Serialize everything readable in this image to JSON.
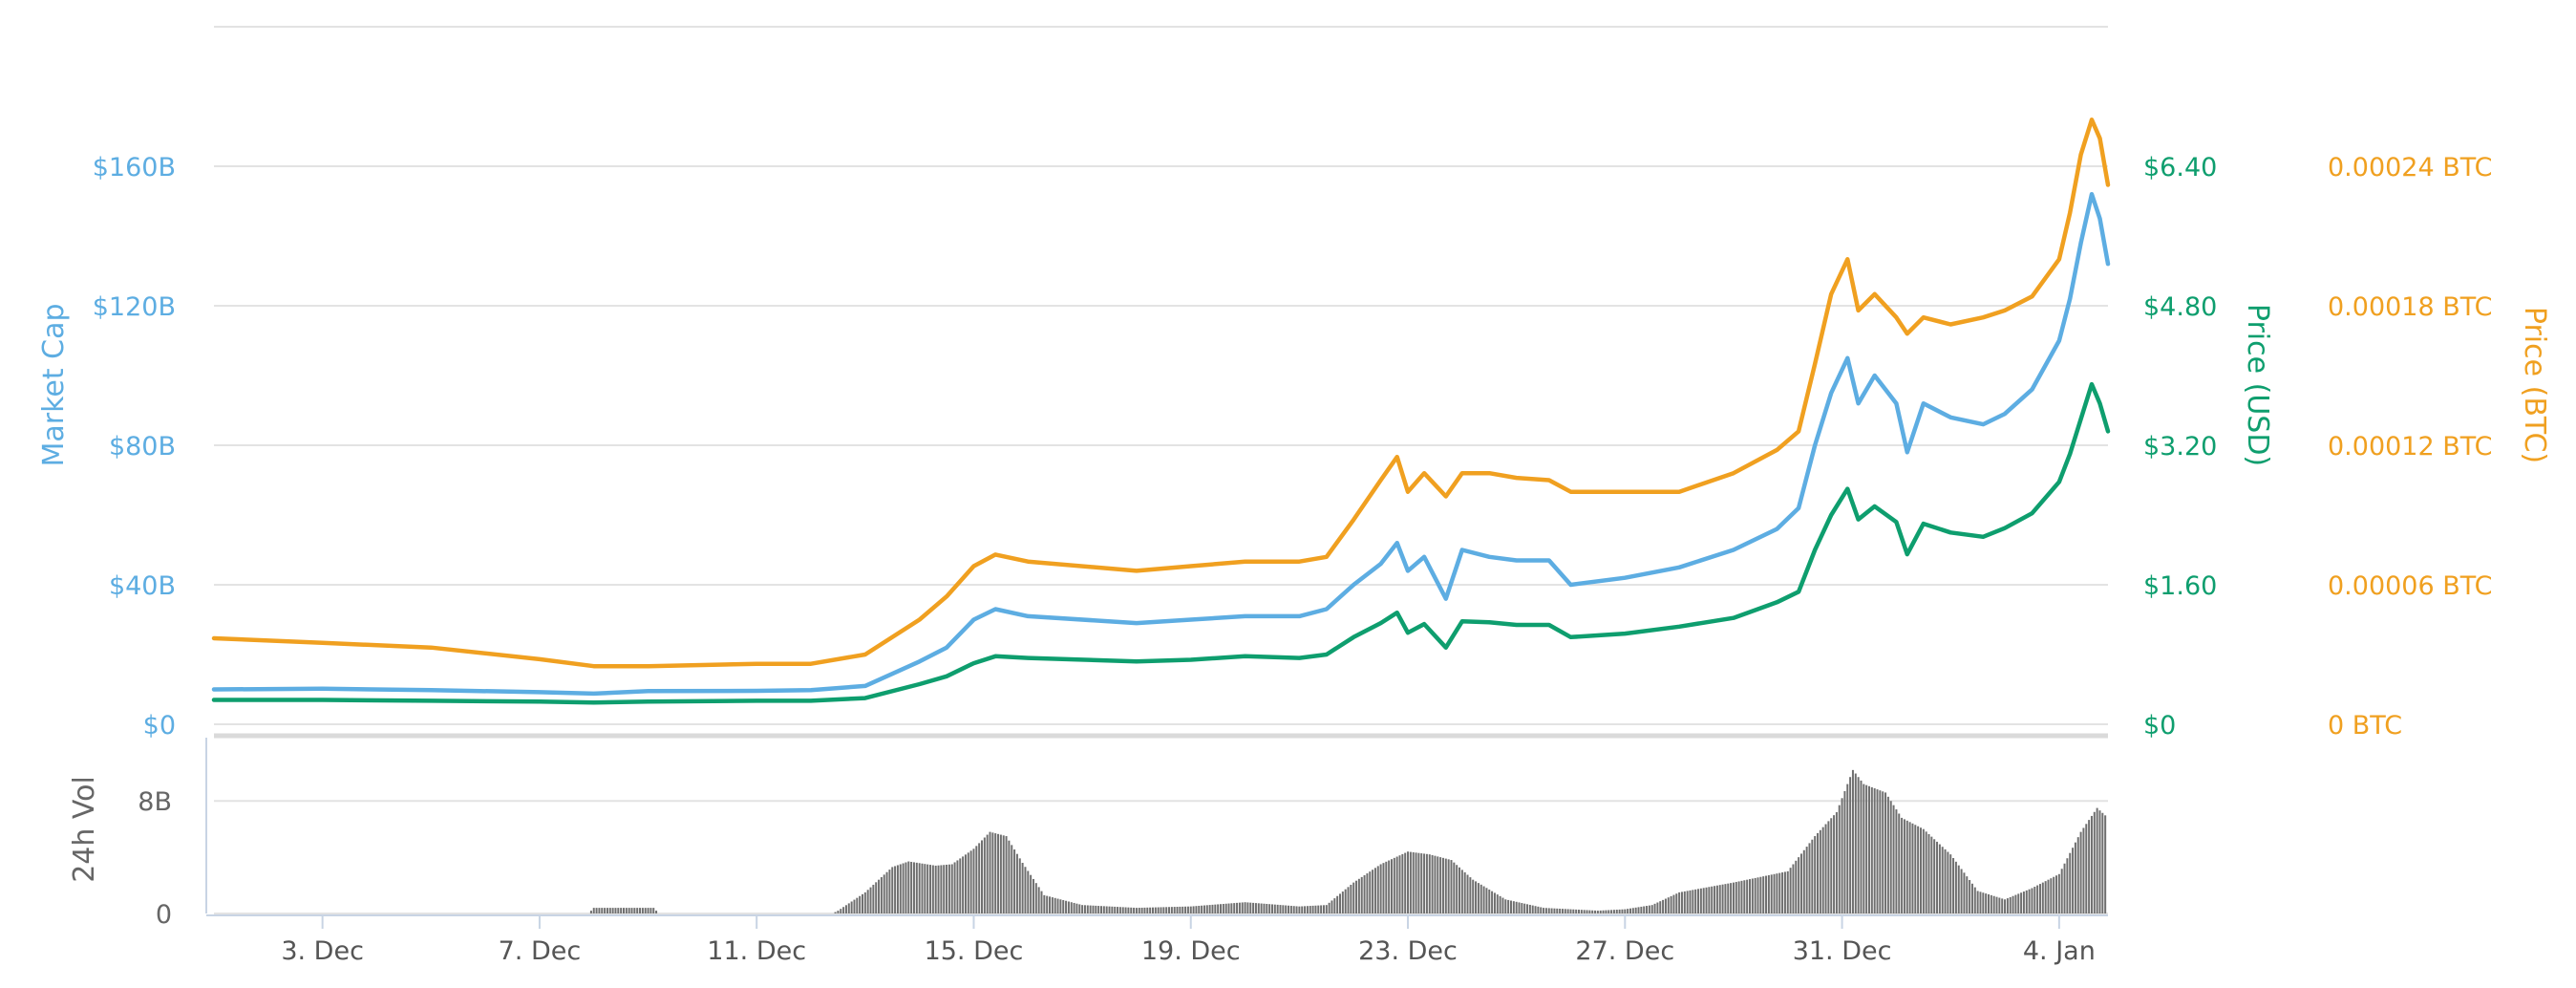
{
  "chart_data": {
    "type": "line",
    "x": {
      "tick_labels": [
        "3. Dec",
        "7. Dec",
        "11. Dec",
        "15. Dec",
        "19. Dec",
        "23. Dec",
        "27. Dec",
        "31. Dec",
        "4. Jan"
      ],
      "tick_days": [
        2,
        6,
        10,
        14,
        18,
        22,
        26,
        30,
        34
      ],
      "range_days": [
        0,
        34.9
      ]
    },
    "axes": {
      "market_cap": {
        "title": "Market Cap",
        "color": "#5DADE2",
        "range": [
          0,
          200
        ],
        "ticks": [
          {
            "v": 0,
            "label": "$0"
          },
          {
            "v": 40,
            "label": "$40B"
          },
          {
            "v": 80,
            "label": "$80B"
          },
          {
            "v": 120,
            "label": "$120B"
          },
          {
            "v": 160,
            "label": "$160B"
          }
        ]
      },
      "price_usd": {
        "title": "Price (USD)",
        "color": "#0E9E6E",
        "range": [
          0,
          8
        ],
        "ticks": [
          {
            "v": 0,
            "label": "$0"
          },
          {
            "v": 1.6,
            "label": "$1.60"
          },
          {
            "v": 3.2,
            "label": "$3.20"
          },
          {
            "v": 4.8,
            "label": "$4.80"
          },
          {
            "v": 6.4,
            "label": "$6.40"
          }
        ]
      },
      "price_btc": {
        "title": "Price (BTC)",
        "color": "#F0A020",
        "range": [
          0,
          0.0003
        ],
        "ticks": [
          {
            "v": 0,
            "label": "0 BTC"
          },
          {
            "v": 6e-05,
            "label": "0.00006 BTC"
          },
          {
            "v": 0.00012,
            "label": "0.00012 BTC"
          },
          {
            "v": 0.00018,
            "label": "0.00018 BTC"
          },
          {
            "v": 0.00024,
            "label": "0.00024 BTC"
          }
        ]
      },
      "volume": {
        "title": "24h Vol",
        "color": "#666666",
        "range": [
          0,
          12.5
        ],
        "ticks": [
          {
            "v": 0,
            "label": "0"
          },
          {
            "v": 8,
            "label": "8B"
          }
        ]
      }
    },
    "grid": true,
    "series": [
      {
        "axis": "market_cap",
        "points": [
          [
            0,
            10
          ],
          [
            2,
            10.2
          ],
          [
            4,
            9.8
          ],
          [
            6,
            9.2
          ],
          [
            7,
            8.8
          ],
          [
            8,
            9.5
          ],
          [
            10,
            9.6
          ],
          [
            11,
            9.8
          ],
          [
            12,
            11
          ],
          [
            13,
            18
          ],
          [
            13.5,
            22
          ],
          [
            14,
            30
          ],
          [
            14.4,
            33
          ],
          [
            15,
            31
          ],
          [
            17,
            29
          ],
          [
            18,
            30
          ],
          [
            19,
            31
          ],
          [
            20,
            31
          ],
          [
            20.5,
            33
          ],
          [
            21,
            40
          ],
          [
            21.5,
            46
          ],
          [
            21.8,
            52
          ],
          [
            22,
            44
          ],
          [
            22.3,
            48
          ],
          [
            22.7,
            36
          ],
          [
            23,
            50
          ],
          [
            23.5,
            48
          ],
          [
            24,
            47
          ],
          [
            24.6,
            47
          ],
          [
            25,
            40
          ],
          [
            26,
            42
          ],
          [
            27,
            45
          ],
          [
            28,
            50
          ],
          [
            28.8,
            56
          ],
          [
            29.2,
            62
          ],
          [
            29.5,
            80
          ],
          [
            29.8,
            95
          ],
          [
            30.1,
            105
          ],
          [
            30.3,
            92
          ],
          [
            30.6,
            100
          ],
          [
            31,
            92
          ],
          [
            31.2,
            78
          ],
          [
            31.5,
            92
          ],
          [
            32,
            88
          ],
          [
            32.6,
            86
          ],
          [
            33,
            89
          ],
          [
            33.5,
            96
          ],
          [
            34,
            110
          ],
          [
            34.2,
            122
          ],
          [
            34.4,
            138
          ],
          [
            34.6,
            152
          ],
          [
            34.75,
            145
          ],
          [
            34.9,
            132
          ]
        ]
      },
      {
        "axis": "price_usd",
        "points": [
          [
            0,
            0.28
          ],
          [
            2,
            0.28
          ],
          [
            4,
            0.27
          ],
          [
            6,
            0.26
          ],
          [
            7,
            0.25
          ],
          [
            8,
            0.26
          ],
          [
            10,
            0.27
          ],
          [
            11,
            0.27
          ],
          [
            12,
            0.3
          ],
          [
            13,
            0.46
          ],
          [
            13.5,
            0.55
          ],
          [
            14,
            0.7
          ],
          [
            14.4,
            0.78
          ],
          [
            15,
            0.76
          ],
          [
            17,
            0.72
          ],
          [
            18,
            0.74
          ],
          [
            19,
            0.78
          ],
          [
            20,
            0.76
          ],
          [
            20.5,
            0.8
          ],
          [
            21,
            1
          ],
          [
            21.5,
            1.16
          ],
          [
            21.8,
            1.28
          ],
          [
            22,
            1.05
          ],
          [
            22.3,
            1.15
          ],
          [
            22.7,
            0.88
          ],
          [
            23,
            1.18
          ],
          [
            23.5,
            1.17
          ],
          [
            24,
            1.14
          ],
          [
            24.6,
            1.14
          ],
          [
            25,
            1
          ],
          [
            26,
            1.04
          ],
          [
            27,
            1.12
          ],
          [
            28,
            1.22
          ],
          [
            28.8,
            1.4
          ],
          [
            29.2,
            1.52
          ],
          [
            29.5,
            2
          ],
          [
            29.8,
            2.4
          ],
          [
            30.1,
            2.7
          ],
          [
            30.3,
            2.35
          ],
          [
            30.6,
            2.5
          ],
          [
            31,
            2.32
          ],
          [
            31.2,
            1.95
          ],
          [
            31.5,
            2.3
          ],
          [
            32,
            2.2
          ],
          [
            32.6,
            2.15
          ],
          [
            33,
            2.25
          ],
          [
            33.5,
            2.42
          ],
          [
            34,
            2.78
          ],
          [
            34.2,
            3.1
          ],
          [
            34.4,
            3.5
          ],
          [
            34.6,
            3.9
          ],
          [
            34.75,
            3.68
          ],
          [
            34.9,
            3.36
          ]
        ]
      },
      {
        "axis": "price_btc",
        "points": [
          [
            0,
            3.7e-05
          ],
          [
            2,
            3.5e-05
          ],
          [
            4,
            3.3e-05
          ],
          [
            6,
            2.8e-05
          ],
          [
            7,
            2.5e-05
          ],
          [
            8,
            2.5e-05
          ],
          [
            10,
            2.6e-05
          ],
          [
            11,
            2.6e-05
          ],
          [
            12,
            3e-05
          ],
          [
            13,
            4.5e-05
          ],
          [
            13.5,
            5.5e-05
          ],
          [
            14,
            6.8e-05
          ],
          [
            14.4,
            7.3e-05
          ],
          [
            15,
            7e-05
          ],
          [
            17,
            6.6e-05
          ],
          [
            18,
            6.8e-05
          ],
          [
            19,
            7e-05
          ],
          [
            20,
            7e-05
          ],
          [
            20.5,
            7.2e-05
          ],
          [
            21,
            8.8e-05
          ],
          [
            21.5,
            0.000105
          ],
          [
            21.8,
            0.000115
          ],
          [
            22,
            0.0001
          ],
          [
            22.3,
            0.000108
          ],
          [
            22.7,
            9.8e-05
          ],
          [
            23,
            0.000108
          ],
          [
            23.5,
            0.000108
          ],
          [
            24,
            0.000106
          ],
          [
            24.6,
            0.000105
          ],
          [
            25,
            0.0001
          ],
          [
            26,
            0.0001
          ],
          [
            27,
            0.0001
          ],
          [
            28,
            0.000108
          ],
          [
            28.8,
            0.000118
          ],
          [
            29.2,
            0.000126
          ],
          [
            29.5,
            0.000155
          ],
          [
            29.8,
            0.000185
          ],
          [
            30.1,
            0.0002
          ],
          [
            30.3,
            0.000178
          ],
          [
            30.6,
            0.000185
          ],
          [
            31,
            0.000175
          ],
          [
            31.2,
            0.000168
          ],
          [
            31.5,
            0.000175
          ],
          [
            32,
            0.000172
          ],
          [
            32.6,
            0.000175
          ],
          [
            33,
            0.000178
          ],
          [
            33.5,
            0.000184
          ],
          [
            34,
            0.0002
          ],
          [
            34.2,
            0.00022
          ],
          [
            34.4,
            0.000245
          ],
          [
            34.6,
            0.00026
          ],
          [
            34.75,
            0.000252
          ],
          [
            34.9,
            0.000232
          ]
        ]
      },
      {
        "axis": "volume",
        "type": "bar",
        "points": [
          [
            0,
            0
          ],
          [
            6.9,
            0
          ],
          [
            7,
            0.4
          ],
          [
            8.1,
            0.4
          ],
          [
            8.2,
            0
          ],
          [
            11.4,
            0
          ],
          [
            11.5,
            0.2
          ],
          [
            12,
            1.5
          ],
          [
            12.5,
            3.3
          ],
          [
            12.8,
            3.7
          ],
          [
            13.3,
            3.4
          ],
          [
            13.6,
            3.5
          ],
          [
            14,
            4.6
          ],
          [
            14.3,
            5.8
          ],
          [
            14.6,
            5.5
          ],
          [
            14.9,
            3.6
          ],
          [
            15.3,
            1.3
          ],
          [
            16,
            0.6
          ],
          [
            17,
            0.4
          ],
          [
            18,
            0.5
          ],
          [
            19,
            0.8
          ],
          [
            20,
            0.5
          ],
          [
            20.5,
            0.6
          ],
          [
            21,
            2.2
          ],
          [
            21.5,
            3.5
          ],
          [
            22,
            4.4
          ],
          [
            22.4,
            4.2
          ],
          [
            22.8,
            3.8
          ],
          [
            23.2,
            2.4
          ],
          [
            23.8,
            1
          ],
          [
            24.5,
            0.4
          ],
          [
            25,
            0.3
          ],
          [
            25.5,
            0.2
          ],
          [
            26,
            0.3
          ],
          [
            26.5,
            0.6
          ],
          [
            27,
            1.5
          ],
          [
            28,
            2.2
          ],
          [
            28.5,
            2.6
          ],
          [
            29,
            3
          ],
          [
            29.5,
            5.5
          ],
          [
            29.9,
            7.2
          ],
          [
            30.2,
            10.2
          ],
          [
            30.4,
            9.2
          ],
          [
            30.8,
            8.6
          ],
          [
            31.1,
            6.8
          ],
          [
            31.5,
            6
          ],
          [
            32,
            4.2
          ],
          [
            32.5,
            1.6
          ],
          [
            33,
            1
          ],
          [
            33.5,
            1.8
          ],
          [
            34,
            2.8
          ],
          [
            34.4,
            5.8
          ],
          [
            34.7,
            7.5
          ],
          [
            34.9,
            6.8
          ]
        ]
      }
    ]
  }
}
